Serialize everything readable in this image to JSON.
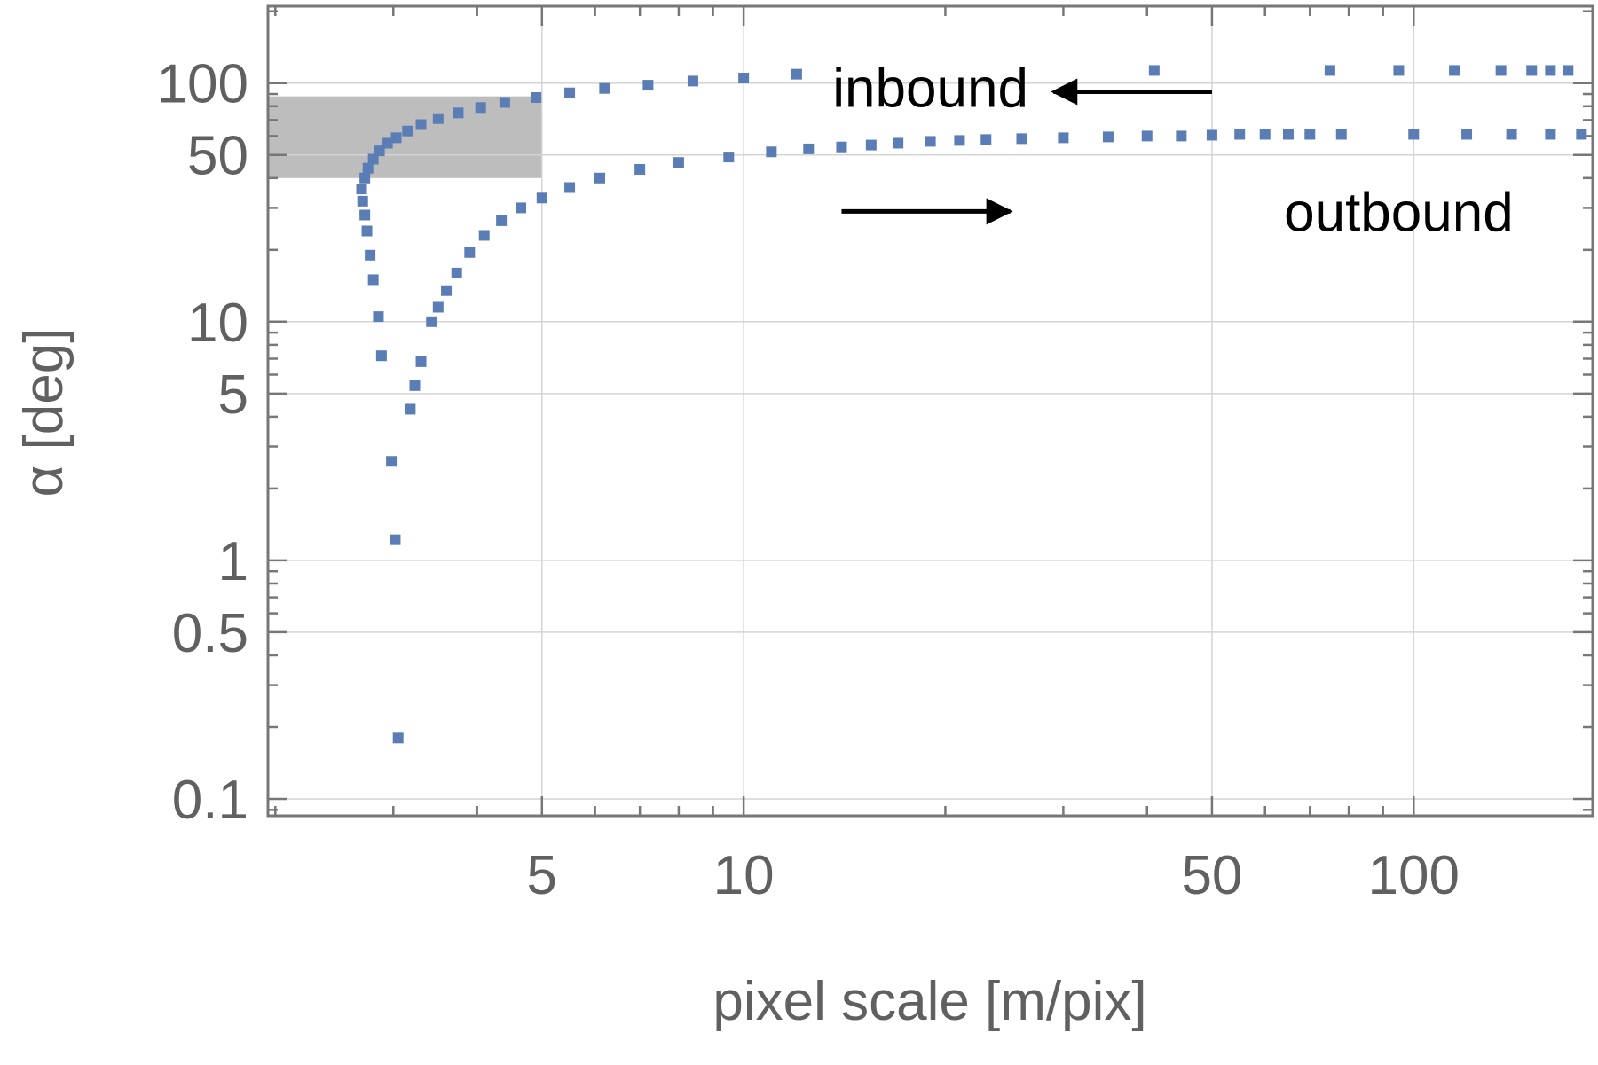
{
  "chart_data": {
    "type": "scatter",
    "title": "",
    "xlabel": "pixel scale [m/pix]",
    "ylabel": "α [deg]",
    "x_scale": "log",
    "y_scale": "log",
    "xlim": [
      1.95,
      185
    ],
    "ylim": [
      0.085,
      210
    ],
    "grid": true,
    "x_ticks": [
      {
        "value": 5,
        "label": "5"
      },
      {
        "value": 10,
        "label": "10"
      },
      {
        "value": 50,
        "label": "50"
      },
      {
        "value": 100,
        "label": "100"
      }
    ],
    "y_ticks": [
      {
        "value": 0.1,
        "label": "0.1"
      },
      {
        "value": 0.5,
        "label": "0.5"
      },
      {
        "value": 1,
        "label": "1"
      },
      {
        "value": 5,
        "label": "5"
      },
      {
        "value": 10,
        "label": "10"
      },
      {
        "value": 50,
        "label": "50"
      },
      {
        "value": 100,
        "label": "100"
      }
    ],
    "shaded_region": {
      "x": [
        1.95,
        5
      ],
      "y": [
        40,
        88
      ],
      "color": "#bdbdbd"
    },
    "marker_color": "#5b7db5",
    "series": [
      {
        "points": [
          [
            3.05,
            0.18
          ],
          [
            3.02,
            1.22
          ],
          [
            2.98,
            2.6
          ],
          [
            2.88,
            7.2
          ],
          [
            2.85,
            10.5
          ],
          [
            2.8,
            15
          ],
          [
            2.77,
            19
          ],
          [
            2.74,
            24
          ],
          [
            2.72,
            28
          ],
          [
            2.7,
            32
          ],
          [
            2.69,
            36
          ],
          [
            2.72,
            40
          ],
          [
            2.75,
            44
          ],
          [
            2.8,
            48
          ],
          [
            2.86,
            52
          ],
          [
            2.94,
            56
          ],
          [
            3.03,
            59
          ],
          [
            3.15,
            63
          ],
          [
            3.3,
            67
          ],
          [
            3.5,
            71
          ],
          [
            3.75,
            75
          ],
          [
            4.05,
            79
          ],
          [
            4.4,
            83
          ],
          [
            4.9,
            87
          ],
          [
            5.5,
            91
          ],
          [
            6.2,
            95
          ],
          [
            7.2,
            98
          ],
          [
            8.4,
            102
          ],
          [
            10,
            105
          ],
          [
            12,
            109
          ],
          [
            41,
            113
          ],
          [
            75,
            113
          ],
          [
            95,
            113
          ],
          [
            115,
            113
          ],
          [
            135,
            113
          ],
          [
            150,
            113
          ],
          [
            160,
            113
          ],
          [
            170,
            113
          ]
        ]
      },
      {
        "points": [
          [
            3.18,
            4.3
          ],
          [
            3.23,
            5.4
          ],
          [
            3.3,
            6.8
          ],
          [
            3.42,
            10
          ],
          [
            3.5,
            11.5
          ],
          [
            3.6,
            13.5
          ],
          [
            3.73,
            16
          ],
          [
            3.9,
            19.5
          ],
          [
            4.1,
            23
          ],
          [
            4.35,
            26.5
          ],
          [
            4.65,
            30
          ],
          [
            5,
            33
          ],
          [
            5.5,
            36.5
          ],
          [
            6.1,
            40
          ],
          [
            7,
            43.5
          ],
          [
            8,
            46.5
          ],
          [
            9.5,
            49
          ],
          [
            11,
            51.5
          ],
          [
            12.5,
            53
          ],
          [
            14,
            54
          ],
          [
            15.5,
            55
          ],
          [
            17,
            56
          ],
          [
            19,
            57
          ],
          [
            21,
            57.5
          ],
          [
            23,
            58
          ],
          [
            26,
            58.5
          ],
          [
            30,
            59
          ],
          [
            35,
            59.5
          ],
          [
            40,
            60
          ],
          [
            45,
            60
          ],
          [
            50,
            60.5
          ],
          [
            55,
            61
          ],
          [
            60,
            61
          ],
          [
            65,
            61
          ],
          [
            70,
            61
          ],
          [
            78,
            61
          ],
          [
            100,
            61
          ],
          [
            120,
            61
          ],
          [
            140,
            61
          ],
          [
            160,
            61
          ],
          [
            178,
            61
          ]
        ]
      }
    ],
    "annotations": [
      {
        "text": "inbound",
        "x": 19,
        "y": 96
      },
      {
        "text": "outbound",
        "x": 95,
        "y": 29
      }
    ],
    "arrows": [
      {
        "direction": "left",
        "from": [
          50,
          92
        ],
        "to": [
          29,
          92
        ]
      },
      {
        "direction": "right",
        "from": [
          14,
          29
        ],
        "to": [
          25,
          29
        ]
      }
    ]
  }
}
